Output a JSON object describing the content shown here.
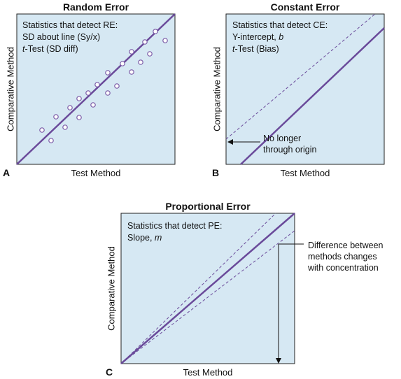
{
  "panels": {
    "a": {
      "letter": "A",
      "title": "Random Error",
      "xlabel": "Test Method",
      "ylabel": "Comparative Method",
      "stats": [
        "Statistics that detect RE:",
        "SD about line (Sy/x)"
      ],
      "stats_t": {
        "italic": "t",
        "rest": "-Test (SD diff)"
      }
    },
    "b": {
      "letter": "B",
      "title": "Constant Error",
      "xlabel": "Test Method",
      "ylabel": "Comparative Method",
      "stats_line1": "Statistics that detect CE:",
      "stats_line2": {
        "plain": "Y-intercept, ",
        "italic": "b"
      },
      "stats_t": {
        "italic": "t",
        "rest": "-Test (Bias)"
      },
      "annotation": [
        "No longer",
        "through origin"
      ]
    },
    "c": {
      "letter": "C",
      "title": "Proportional Error",
      "xlabel": "Test Method",
      "ylabel": "Comparative Method",
      "stats_line1": "Statistics that detect PE:",
      "stats_line2": {
        "plain": "Slope, ",
        "italic": "m"
      },
      "annotation": [
        "Difference between",
        "methods changes",
        "with concentration"
      ]
    }
  },
  "colors": {
    "panel_fill": "#d6e8f3",
    "line": "#6a4a9a",
    "point_stroke": "#7a5aa6",
    "frame": "#222222"
  }
}
